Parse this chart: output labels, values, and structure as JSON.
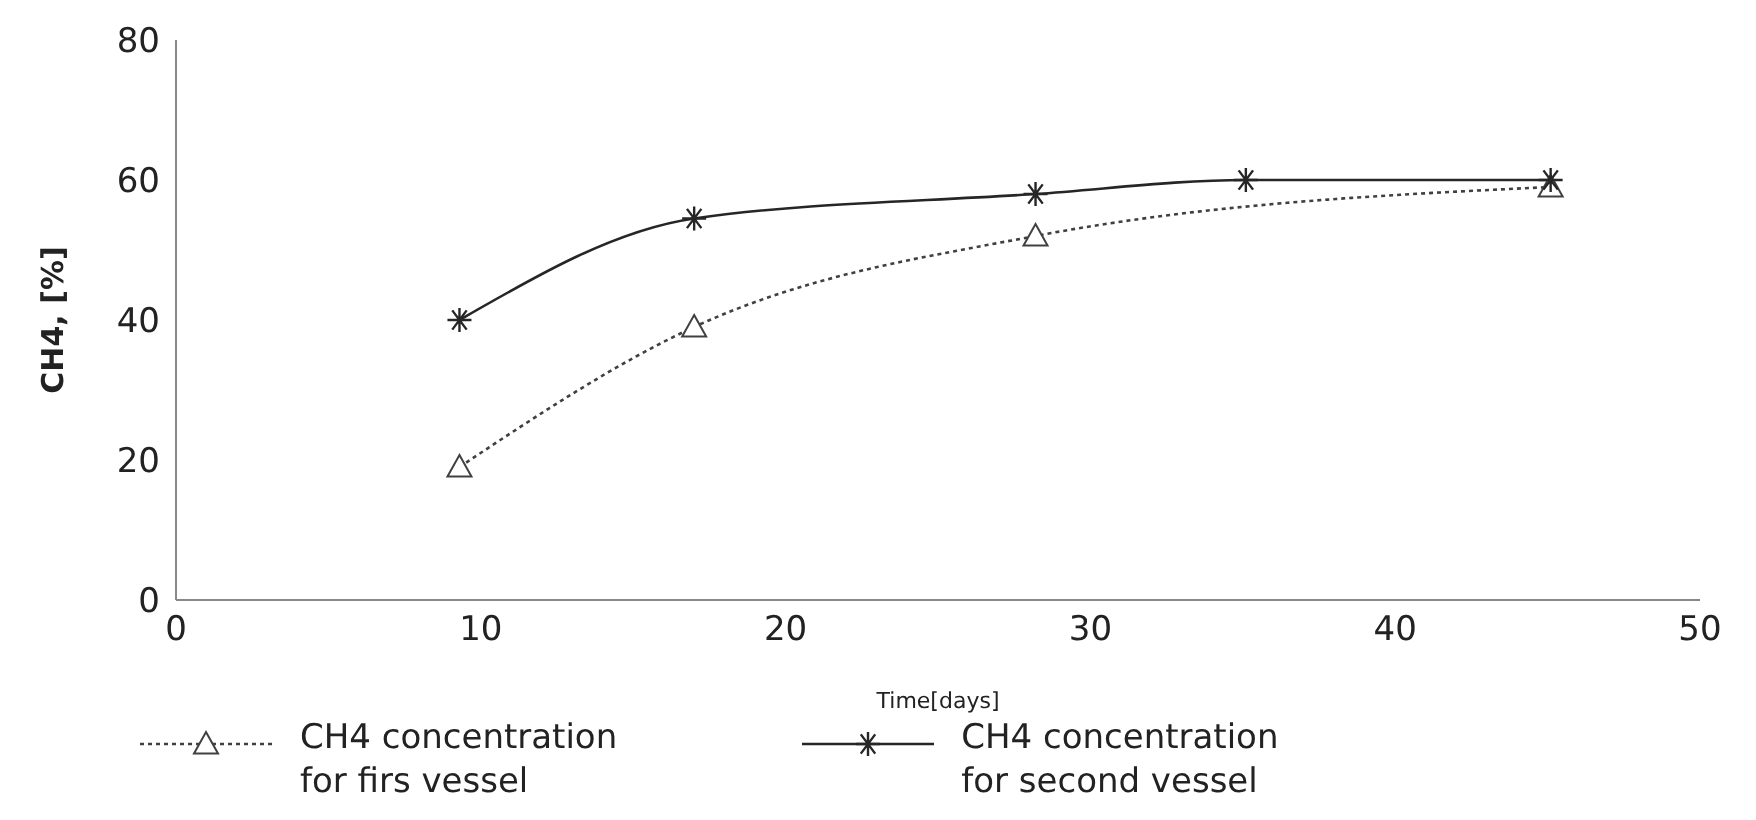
{
  "chart_data": {
    "type": "line",
    "xlabel": "Time[days]",
    "ylabel": "CH4, [%]",
    "xlim": [
      0,
      50
    ],
    "xticks": [
      0,
      10,
      20,
      30,
      40,
      50
    ],
    "ylim": [
      0,
      80
    ],
    "yticks": [
      0,
      20,
      40,
      60,
      80
    ],
    "grid": false,
    "legend": "bottom",
    "series": [
      {
        "name": "CH4 concentration for firs vessel",
        "color": "#404040",
        "x": [
          9.3,
          17,
          28.2,
          45.1
        ],
        "values": [
          19,
          39,
          52,
          59
        ],
        "marker": "triangle",
        "line_style": "dotted"
      },
      {
        "name": "CH4 concentration for second vessel",
        "color": "#262626",
        "x": [
          9.3,
          17,
          28.2,
          35.1,
          45.1
        ],
        "values": [
          40,
          54.5,
          58,
          60,
          60
        ],
        "marker": "cross",
        "line_style": "solid"
      }
    ]
  }
}
